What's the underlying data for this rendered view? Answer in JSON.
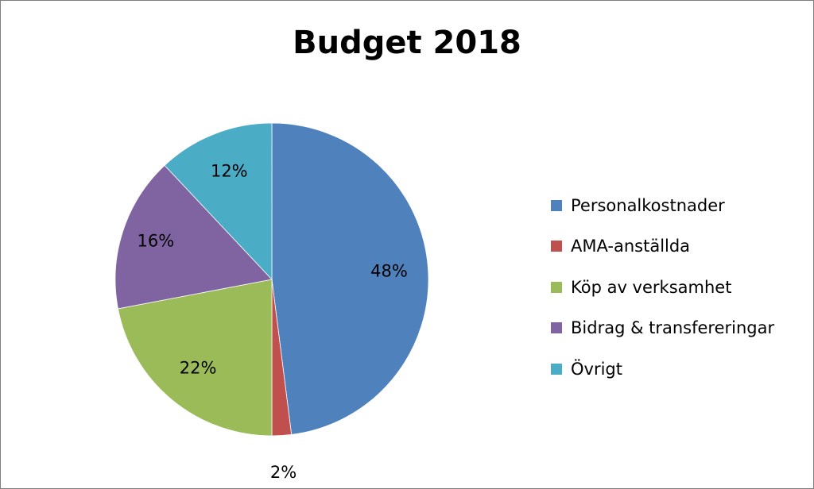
{
  "chart_data": {
    "type": "pie",
    "title": "Budget 2018",
    "categories": [
      "Personalkostnader",
      "AMA-anställda",
      "Köp av verksamhet",
      "Bidrag & transfereringar",
      "Övrigt"
    ],
    "values": [
      48,
      2,
      22,
      16,
      12
    ],
    "labels": [
      "48%",
      "2%",
      "22%",
      "16%",
      "12%"
    ],
    "colors": [
      "#4f81bd",
      "#c0504d",
      "#9bbb59",
      "#8064a2",
      "#4bacc6"
    ],
    "legend_position": "right",
    "start_angle": "top, clockwise"
  }
}
